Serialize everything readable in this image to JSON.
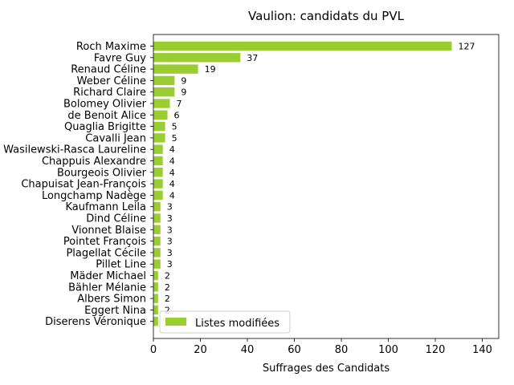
{
  "chart_data": {
    "type": "bar",
    "orientation": "horizontal",
    "title": "Vaulion: candidats du PVL",
    "xlabel": "Suffrages des Candidats",
    "ylabel": "",
    "xlim": [
      0,
      147
    ],
    "xticks": [
      0,
      20,
      40,
      60,
      80,
      100,
      120,
      140
    ],
    "color": "#9acd32",
    "grid": false,
    "legend_position": "lower-left",
    "categories": [
      "Roch Maxime",
      "Favre Guy",
      "Renaud Céline",
      "Weber Céline",
      "Richard Claire",
      "Bolomey Olivier",
      "de Benoit Alice",
      "Quaglia Brigitte",
      "Cavalli Jean",
      "Wasilewski-Rasca Laureline",
      "Chappuis Alexandre",
      "Bourgeois Olivier",
      "Chapuisat Jean-François",
      "Longchamp Nadège",
      "Kaufmann Leila",
      "Dind Céline",
      "Vionnet Blaise",
      "Pointet François",
      "Plagellat Cécile",
      "Pillet Line",
      "Mäder Michael",
      "Bähler Mélanie",
      "Albers Simon",
      "Eggert Nina",
      "Diserens Véronique"
    ],
    "series": [
      {
        "name": "Listes modifiées",
        "values": [
          127,
          37,
          19,
          9,
          9,
          7,
          6,
          5,
          5,
          4,
          4,
          4,
          4,
          4,
          3,
          3,
          3,
          3,
          3,
          3,
          2,
          2,
          2,
          2,
          2
        ]
      }
    ]
  }
}
